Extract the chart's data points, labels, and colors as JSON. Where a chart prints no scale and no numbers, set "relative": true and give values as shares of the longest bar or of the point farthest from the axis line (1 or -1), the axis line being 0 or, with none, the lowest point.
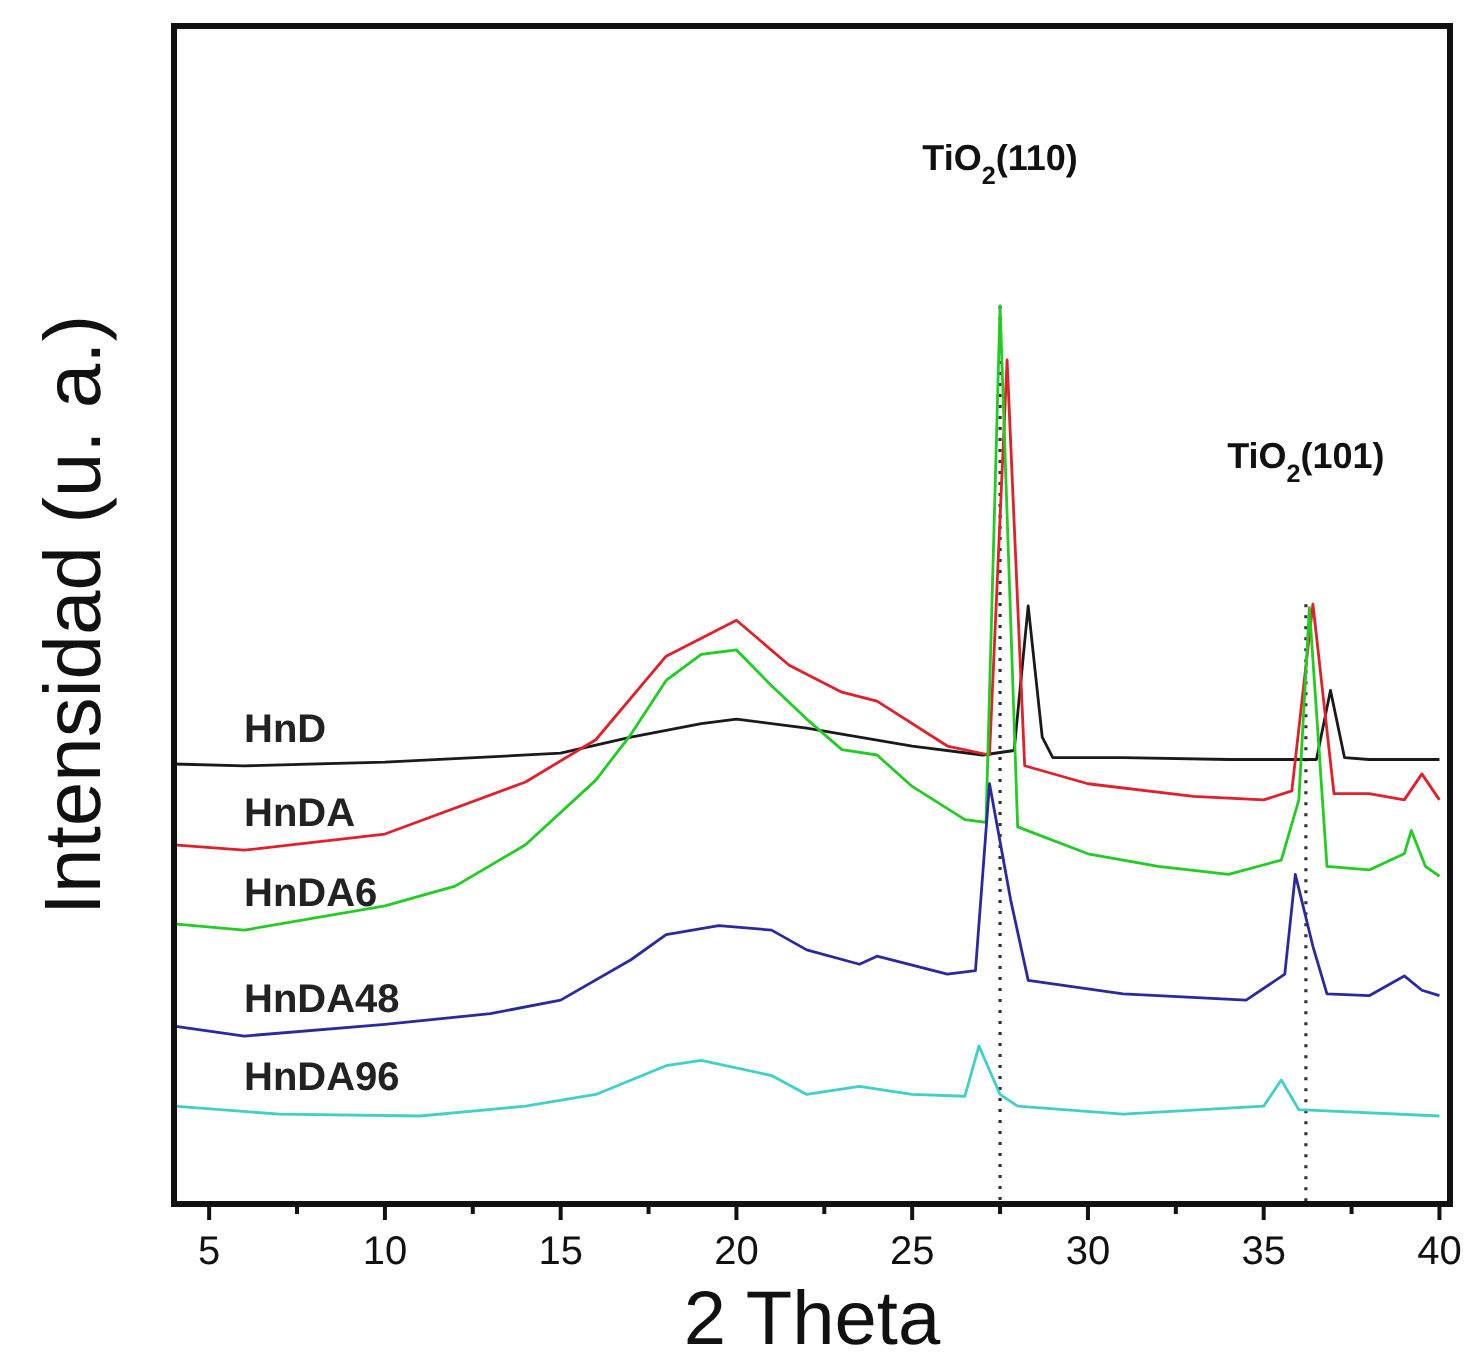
{
  "chart_data": {
    "type": "line",
    "relative": true,
    "xlabel": "2 Theta",
    "ylabel": "Intensidad (u. a.)",
    "xlim": [
      4,
      40.3
    ],
    "xticks": [
      5,
      {
        "value": 7.5,
        "label": null
      },
      10,
      {
        "value": 12.5,
        "label": null
      },
      15,
      {
        "value": 17.5,
        "label": null
      },
      20,
      {
        "value": 22.5,
        "label": null
      },
      25,
      {
        "value": 27.5,
        "label": null
      },
      30,
      {
        "value": 32.5,
        "label": null
      },
      35,
      {
        "value": 37.5,
        "label": null
      },
      40
    ],
    "ref_lines": [
      {
        "axis": "x",
        "value": 27.5,
        "line_style": "dotted",
        "color": "#333333"
      },
      {
        "axis": "x",
        "value": 36.2,
        "line_style": "dotted",
        "color": "#333333"
      }
    ],
    "annotations": [
      "TiO$_{2}$(110)",
      "TiO$_{2}$(101)"
    ],
    "series": [
      {
        "name": "HnD",
        "color": "#1a1a1a",
        "x": [
          4,
          6,
          10,
          15,
          17,
          19,
          20,
          22,
          23.5,
          25,
          27,
          27.9,
          28.3,
          28.7,
          29,
          31,
          34,
          36.5,
          36.9,
          37.3,
          38,
          40
        ],
        "values": [
          0.49,
          0.488,
          0.492,
          0.502,
          0.52,
          0.535,
          0.54,
          0.53,
          0.52,
          0.51,
          0.5,
          0.505,
          0.666,
          0.52,
          0.497,
          0.497,
          0.495,
          0.495,
          0.572,
          0.497,
          0.495,
          0.495
        ]
      },
      {
        "name": "HnDA",
        "color": "#e0202a",
        "x": [
          4,
          6,
          10,
          14,
          16,
          18,
          19,
          19.5,
          20,
          21.5,
          23,
          24,
          26,
          27.2,
          27.7,
          28.2,
          30,
          33,
          35,
          35.8,
          36.4,
          37,
          38,
          39,
          39.5,
          40
        ],
        "values": [
          0.4,
          0.394,
          0.412,
          0.47,
          0.517,
          0.61,
          0.63,
          0.64,
          0.65,
          0.6,
          0.57,
          0.56,
          0.51,
          0.5,
          0.94,
          0.488,
          0.468,
          0.454,
          0.45,
          0.46,
          0.668,
          0.457,
          0.457,
          0.45,
          0.479,
          0.45
        ]
      },
      {
        "name": "HnDA6",
        "color": "#22cc22",
        "x": [
          4,
          6,
          10,
          12,
          14,
          16,
          17,
          18,
          19,
          20,
          21,
          22,
          23,
          24,
          25,
          26.5,
          27.1,
          27.5,
          28,
          30,
          32,
          34,
          35.5,
          36,
          36.3,
          36.8,
          38,
          39,
          39.2,
          39.6,
          40
        ],
        "values": [
          0.312,
          0.305,
          0.332,
          0.354,
          0.4,
          0.472,
          0.523,
          0.583,
          0.612,
          0.617,
          0.577,
          0.54,
          0.506,
          0.5,
          0.465,
          0.428,
          0.425,
          1.0,
          0.42,
          0.39,
          0.376,
          0.367,
          0.383,
          0.45,
          0.664,
          0.376,
          0.372,
          0.39,
          0.416,
          0.376,
          0.365
        ]
      },
      {
        "name": "HnDA48",
        "color": "#2a2aa0",
        "x": [
          4,
          6,
          10,
          13,
          15,
          17,
          18,
          19.5,
          21,
          22,
          23.5,
          24,
          26,
          26.8,
          27.2,
          27.8,
          28.3,
          31,
          34.5,
          35.6,
          35.9,
          36.4,
          36.8,
          38,
          39,
          39.5,
          40
        ],
        "values": [
          0.198,
          0.187,
          0.2,
          0.212,
          0.227,
          0.272,
          0.3,
          0.31,
          0.305,
          0.283,
          0.267,
          0.276,
          0.256,
          0.26,
          0.468,
          0.339,
          0.249,
          0.234,
          0.227,
          0.256,
          0.367,
          0.287,
          0.234,
          0.232,
          0.254,
          0.238,
          0.232
        ]
      },
      {
        "name": "HnDA96",
        "color": "#40d0c8",
        "x": [
          4,
          7,
          11,
          14,
          16,
          18,
          19,
          21,
          22,
          23.5,
          25,
          26.5,
          26.9,
          27.5,
          28,
          31,
          35,
          35.5,
          36,
          40
        ],
        "values": [
          0.109,
          0.1,
          0.098,
          0.109,
          0.122,
          0.154,
          0.16,
          0.143,
          0.122,
          0.131,
          0.122,
          0.12,
          0.176,
          0.122,
          0.109,
          0.1,
          0.109,
          0.138,
          0.105,
          0.098
        ]
      }
    ]
  }
}
